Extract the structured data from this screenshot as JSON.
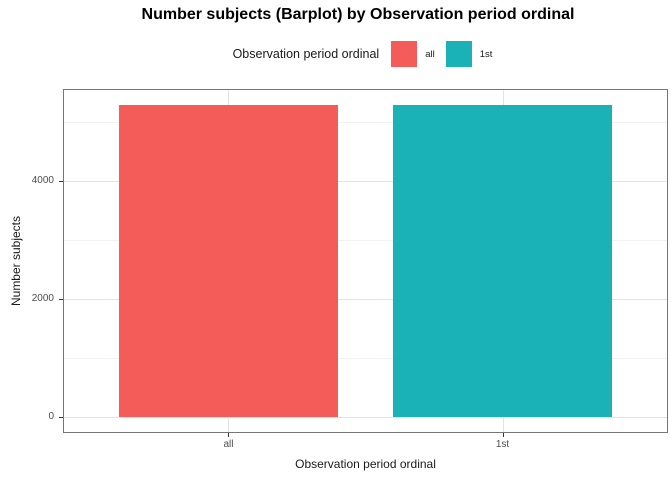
{
  "title": "Number subjects (Barplot) by Observation period ordinal",
  "legend": {
    "title": "Observation period ordinal",
    "items": [
      {
        "label": "all",
        "color": "#F35C59"
      },
      {
        "label": "1st",
        "color": "#1AB2B6"
      }
    ]
  },
  "chart_data": {
    "type": "bar",
    "title": "Number subjects (Barplot) by Observation period ordinal",
    "categories": [
      "all",
      "1st"
    ],
    "series": [
      {
        "name": "all",
        "value": 5300,
        "color": "#F35C59"
      },
      {
        "name": "1st",
        "value": 5300,
        "color": "#1AB2B6"
      }
    ],
    "xlabel": "Observation period ordinal",
    "ylabel": "Number subjects",
    "y_ticks": [
      0,
      2000,
      4000
    ],
    "y_minor_ticks": [
      1000,
      3000,
      5000
    ],
    "ylim": [
      -262,
      5550
    ],
    "bar_width_units": 0.8,
    "x_expand_units": 0.6,
    "legend_position": "top",
    "grid": true,
    "panel_border_color": "#767676",
    "grid_major_color": "#e3e3e3",
    "grid_minor_color": "#f1f1f1"
  }
}
